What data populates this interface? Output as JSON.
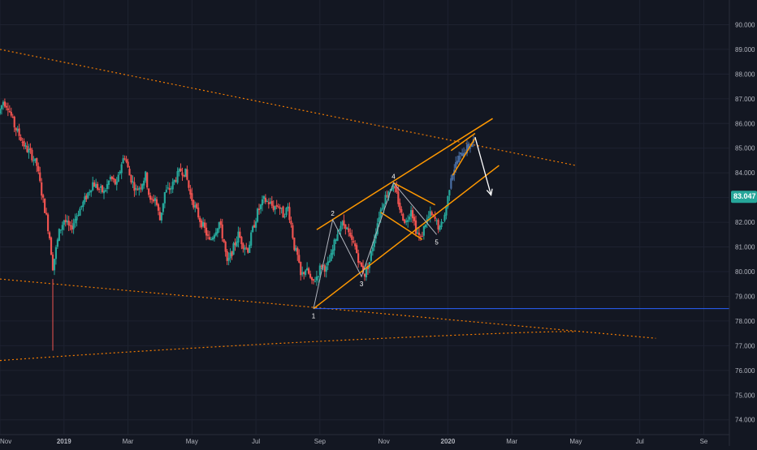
{
  "colors": {
    "background": "#131722",
    "grid": "#1e2230",
    "up": "#26a69a",
    "down": "#ef5350",
    "trendline": "#ff9800",
    "trendline_dotted": "#f57c00",
    "support_line": "#2962ff",
    "wave_line": "#b2b5be",
    "highlight_bars": "#4a6fa5",
    "arrow": "#ffffff",
    "axis_text": "#b2b5be",
    "price_badge": "#26a69a",
    "price_badge_text": "#ffffff"
  },
  "chart_data": {
    "type": "candlestick",
    "y_axis": {
      "ticks": [
        "74.000",
        "75.000",
        "76.000",
        "77.000",
        "78.000",
        "79.000",
        "80.000",
        "81.000",
        "82.000",
        "83.000",
        "84.000",
        "85.000",
        "86.000",
        "87.000",
        "88.000",
        "89.000",
        "90.000"
      ],
      "tick_values": [
        74,
        75,
        76,
        77,
        78,
        79,
        80,
        81,
        82,
        83,
        84,
        85,
        86,
        87,
        88,
        89,
        90
      ],
      "range": [
        73.4,
        91.0
      ]
    },
    "x_axis": {
      "ticks": [
        "Nov",
        "2019",
        "Mar",
        "May",
        "Jul",
        "Sep",
        "Nov",
        "2020",
        "Mar",
        "May",
        "Jul",
        "Se"
      ],
      "tick_month_index": [
        0,
        2,
        4,
        6,
        8,
        10,
        12,
        14,
        16,
        18,
        20,
        22
      ],
      "range_months": [
        0,
        22.8
      ],
      "bold_ticks": [
        "2019",
        "2020"
      ]
    },
    "last_price": {
      "label": "83.047",
      "value": 83.047
    },
    "candles_anchors": [
      [
        0.0,
        86.4
      ],
      [
        0.15,
        86.9
      ],
      [
        0.3,
        86.7
      ],
      [
        0.5,
        85.9
      ],
      [
        0.7,
        85.4
      ],
      [
        0.85,
        85.0
      ],
      [
        1.0,
        84.8
      ],
      [
        1.2,
        84.3
      ],
      [
        1.35,
        83.2
      ],
      [
        1.5,
        82.2
      ],
      [
        1.6,
        81.4
      ],
      [
        1.7,
        80.2
      ],
      [
        1.8,
        80.9
      ],
      [
        1.9,
        81.6
      ],
      [
        2.05,
        82.1
      ],
      [
        2.25,
        81.7
      ],
      [
        2.45,
        82.3
      ],
      [
        2.7,
        82.9
      ],
      [
        2.95,
        83.6
      ],
      [
        3.1,
        83.4
      ],
      [
        3.3,
        83.2
      ],
      [
        3.5,
        83.8
      ],
      [
        3.7,
        83.5
      ],
      [
        3.85,
        84.4
      ],
      [
        3.95,
        84.7
      ],
      [
        4.1,
        83.9
      ],
      [
        4.3,
        83.3
      ],
      [
        4.45,
        83.5
      ],
      [
        4.6,
        83.9
      ],
      [
        4.75,
        82.8
      ],
      [
        4.9,
        83.0
      ],
      [
        5.05,
        82.1
      ],
      [
        5.2,
        83.2
      ],
      [
        5.4,
        83.4
      ],
      [
        5.55,
        83.8
      ],
      [
        5.7,
        84.1
      ],
      [
        5.85,
        84.0
      ],
      [
        6.0,
        83.1
      ],
      [
        6.15,
        82.6
      ],
      [
        6.3,
        82.1
      ],
      [
        6.45,
        81.7
      ],
      [
        6.6,
        81.2
      ],
      [
        6.75,
        81.6
      ],
      [
        6.9,
        82.0
      ],
      [
        7.05,
        81.2
      ],
      [
        7.15,
        80.3
      ],
      [
        7.3,
        80.8
      ],
      [
        7.5,
        81.5
      ],
      [
        7.65,
        81.1
      ],
      [
        7.8,
        80.9
      ],
      [
        7.95,
        81.7
      ],
      [
        8.1,
        82.4
      ],
      [
        8.3,
        82.9
      ],
      [
        8.45,
        82.8
      ],
      [
        8.6,
        82.6
      ],
      [
        8.75,
        82.7
      ],
      [
        8.9,
        82.3
      ],
      [
        9.05,
        82.6
      ],
      [
        9.15,
        81.9
      ],
      [
        9.25,
        81.0
      ],
      [
        9.35,
        80.6
      ],
      [
        9.45,
        79.8
      ],
      [
        9.6,
        80.1
      ],
      [
        9.7,
        79.9
      ],
      [
        9.8,
        79.5
      ],
      [
        9.95,
        79.8
      ],
      [
        10.1,
        80.3
      ],
      [
        10.25,
        80.1
      ],
      [
        10.4,
        80.6
      ],
      [
        10.55,
        81.4
      ],
      [
        10.7,
        81.9
      ],
      [
        10.85,
        81.9
      ],
      [
        11.0,
        81.3
      ],
      [
        11.15,
        81.0
      ],
      [
        11.3,
        80.3
      ],
      [
        11.45,
        79.9
      ],
      [
        11.6,
        80.4
      ],
      [
        11.75,
        81.4
      ],
      [
        11.9,
        82.3
      ],
      [
        12.05,
        82.9
      ],
      [
        12.2,
        83.3
      ],
      [
        12.3,
        83.5
      ],
      [
        12.45,
        83.1
      ],
      [
        12.6,
        82.3
      ],
      [
        12.75,
        82.0
      ],
      [
        12.9,
        82.6
      ],
      [
        13.05,
        81.7
      ],
      [
        13.2,
        81.3
      ],
      [
        13.35,
        82.0
      ],
      [
        13.5,
        82.3
      ],
      [
        13.65,
        82.1
      ],
      [
        13.8,
        81.7
      ],
      [
        13.95,
        82.3
      ],
      [
        14.05,
        83.0
      ],
      [
        14.15,
        83.9
      ],
      [
        14.25,
        84.2
      ],
      [
        14.35,
        84.5
      ],
      [
        14.45,
        84.7
      ],
      [
        14.55,
        84.9
      ],
      [
        14.65,
        85.0
      ],
      [
        14.75,
        85.1
      ],
      [
        14.85,
        85.3
      ]
    ],
    "annotations": {
      "wave_labels": [
        "1",
        "2",
        "3",
        "4",
        "5"
      ],
      "wave_points": [
        [
          9.8,
          78.5
        ],
        [
          10.4,
          82.1
        ],
        [
          11.3,
          79.8
        ],
        [
          12.3,
          83.6
        ],
        [
          13.65,
          81.5
        ]
      ],
      "wave_label_offsets": [
        [
          "below"
        ],
        [
          "above"
        ],
        [
          "below"
        ],
        [
          "above"
        ],
        [
          "below"
        ]
      ],
      "channel_lower": [
        [
          9.8,
          78.5
        ],
        [
          15.6,
          84.3
        ]
      ],
      "channel_upper": [
        [
          9.9,
          81.7
        ],
        [
          15.4,
          86.2
        ]
      ],
      "flag_upper": [
        [
          12.3,
          83.6
        ],
        [
          13.6,
          82.7
        ]
      ],
      "flag_lower": [
        [
          11.9,
          82.4
        ],
        [
          13.2,
          81.3
        ]
      ],
      "wedge_line_1": [
        [
          14.1,
          84.9
        ],
        [
          14.85,
          85.6
        ]
      ],
      "wedge_line_2": [
        [
          14.15,
          83.9
        ],
        [
          14.85,
          85.4
        ]
      ],
      "forecast_arrow": [
        [
          14.85,
          85.45
        ],
        [
          15.35,
          83.1
        ]
      ],
      "support_horizontal": 78.5,
      "dotted_upper": [
        [
          0.0,
          89.0
        ],
        [
          18.0,
          84.3
        ]
      ],
      "dotted_lower": [
        [
          0.0,
          79.7
        ],
        [
          20.5,
          77.3
        ]
      ],
      "dotted_curve": [
        [
          0.0,
          76.4
        ],
        [
          6.0,
          76.95
        ],
        [
          12.0,
          77.3
        ],
        [
          18.0,
          77.55
        ]
      ],
      "spike_wick": [
        [
          1.65,
          79.7
        ],
        [
          1.65,
          76.8
        ]
      ]
    }
  }
}
